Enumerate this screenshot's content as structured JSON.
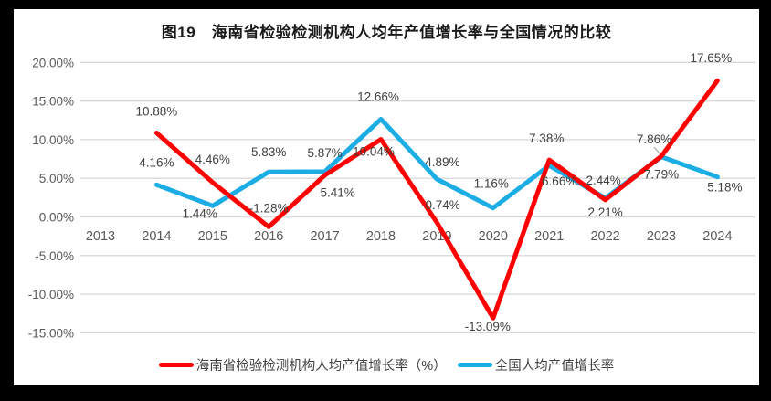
{
  "figure_label": "图19",
  "chart_data": {
    "type": "line",
    "title": "图19　海南省检验检测机构人均年产值增长率与全国情况的比较",
    "xlabel": "",
    "ylabel": "",
    "categories": [
      "2013",
      "2014",
      "2015",
      "2016",
      "2017",
      "2018",
      "2019",
      "2020",
      "2021",
      "2022",
      "2023",
      "2024"
    ],
    "series": [
      {
        "name": "海南省检验检测机构人均产值增长率（%）",
        "color": "#FE0000",
        "values": [
          null,
          10.88,
          4.46,
          -1.28,
          5.41,
          10.04,
          -0.74,
          -13.09,
          7.38,
          2.21,
          7.86,
          17.65
        ]
      },
      {
        "name": "全国人均产值增长率",
        "color": "#1CADE4",
        "values": [
          null,
          4.16,
          1.44,
          5.83,
          5.87,
          12.66,
          4.89,
          1.16,
          6.66,
          2.44,
          7.79,
          5.18
        ]
      }
    ],
    "ylim": [
      -15,
      20
    ],
    "ytick_step": 5,
    "ytick_labels": [
      "20.00%",
      "15.00%",
      "10.00%",
      "5.00%",
      "0.00%",
      "-5.00%",
      "-10.00%",
      "-15.00%"
    ],
    "grid": true,
    "legend_position": "bottom",
    "colors": {
      "background_frame": "#000000",
      "panel": "#FFFFFF",
      "gridline": "#D9D9D9",
      "axis_text": "#595959",
      "data_label": "#404040",
      "callout": "#A6A6A6"
    }
  }
}
